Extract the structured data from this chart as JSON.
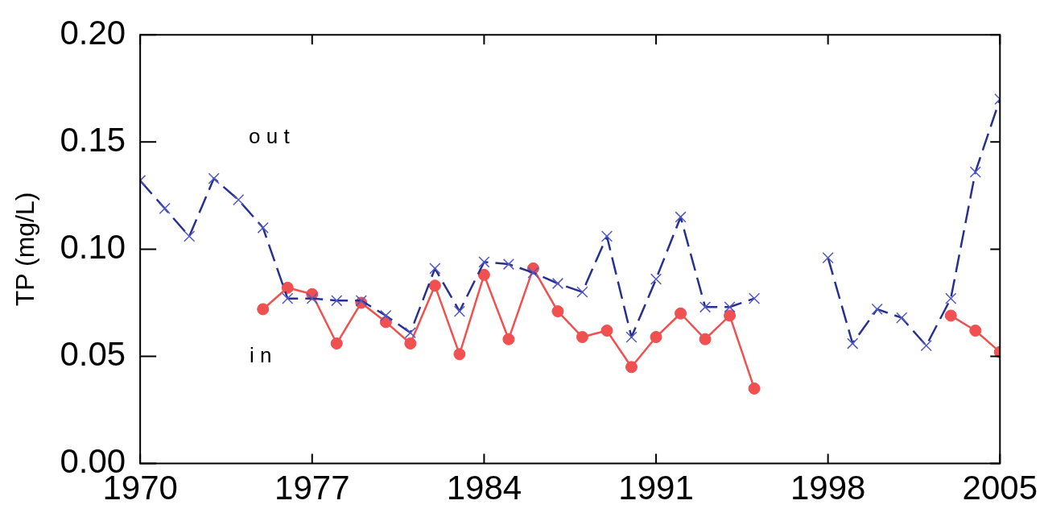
{
  "chart_data": {
    "type": "line",
    "ylabel": "TP (mg/L)",
    "x": [
      1970,
      1971,
      1972,
      1973,
      1974,
      1975,
      1976,
      1977,
      1978,
      1979,
      1980,
      1981,
      1982,
      1983,
      1984,
      1985,
      1986,
      1987,
      1988,
      1989,
      1990,
      1991,
      1992,
      1993,
      1994,
      1995,
      1996,
      1997,
      1998,
      1999,
      2000,
      2001,
      2002,
      2003,
      2004,
      2005
    ],
    "series": [
      {
        "color": "#28308f",
        "marker": "cross",
        "line_style": "dashed",
        "values": [
          0.132,
          0.119,
          0.106,
          0.133,
          0.123,
          0.11,
          0.077,
          0.077,
          0.076,
          0.076,
          0.069,
          0.061,
          0.091,
          0.071,
          0.094,
          0.093,
          0.089,
          0.084,
          0.08,
          0.106,
          0.059,
          0.086,
          0.115,
          0.073,
          0.073,
          0.077,
          null,
          null,
          0.096,
          0.056,
          0.072,
          0.068,
          0.055,
          0.077,
          0.136,
          0.17
        ]
      },
      {
        "color": "#f05050",
        "marker": "circle",
        "line_style": "solid",
        "values": [
          null,
          null,
          null,
          null,
          null,
          0.072,
          0.082,
          0.079,
          0.056,
          0.075,
          0.066,
          0.056,
          0.083,
          0.051,
          0.088,
          0.058,
          0.091,
          0.071,
          0.059,
          0.062,
          0.045,
          0.059,
          0.07,
          0.058,
          0.069,
          0.035,
          null,
          null,
          null,
          null,
          null,
          null,
          null,
          0.069,
          0.062,
          0.052
        ]
      }
    ],
    "xlim": [
      1970,
      2005
    ],
    "xticks": [
      1970,
      1977,
      1984,
      1991,
      1998,
      2005
    ],
    "ylim": [
      0,
      0.2
    ],
    "yticks": [
      {
        "value": 0,
        "label": "0.00"
      },
      {
        "value": 0.05,
        "label": "0.05"
      },
      {
        "value": 0.1,
        "label": "0.10"
      },
      {
        "value": 0.15,
        "label": "0.15"
      },
      {
        "value": 0.2,
        "label": "0.20"
      }
    ],
    "annotations": [
      "o u t",
      "i n"
    ],
    "grid": false,
    "legend": false
  }
}
